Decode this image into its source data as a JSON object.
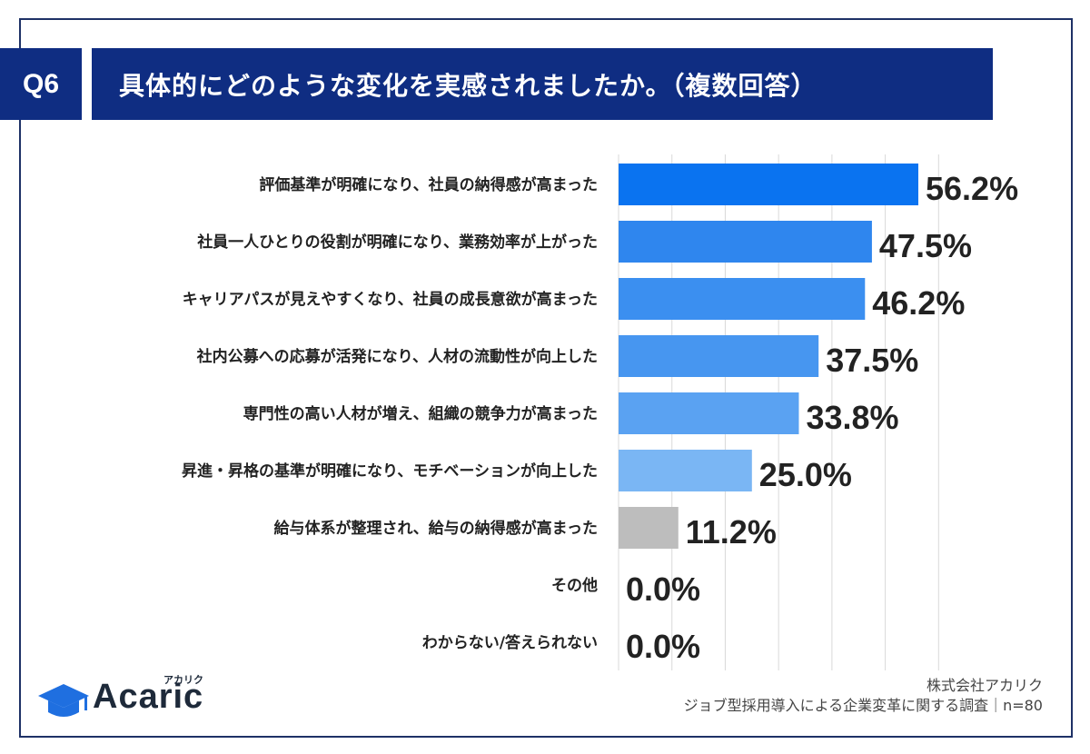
{
  "header": {
    "badge": "Q6",
    "title": "具体的にどのような変化を実感されましたか。（複数回答）"
  },
  "chart_data": {
    "type": "bar",
    "orientation": "horizontal",
    "categories": [
      "評価基準が明確になり、社員の納得感が高まった",
      "社員一人ひとりの役割が明確になり、業務効率が上がった",
      "キャリアパスが見えやすくなり、社員の成長意欲が高まった",
      "社内公募への応募が活発になり、人材の流動性が向上した",
      "専門性の高い人材が増え、組織の競争力が高まった",
      "昇進・昇格の基準が明確になり、モチベーションが向上した",
      "給与体系が整理され、給与の納得感が高まった",
      "その他",
      "わからない/答えられない"
    ],
    "values": [
      56.2,
      47.5,
      46.2,
      37.5,
      33.8,
      25.0,
      11.2,
      0.0,
      0.0
    ],
    "value_labels": [
      "56.2%",
      "47.5%",
      "46.2%",
      "37.5%",
      "33.8%",
      "25.0%",
      "11.2%",
      "0.0%",
      "0.0%"
    ],
    "colors": [
      "#0a73f0",
      "#2f86ee",
      "#3b8ff0",
      "#4796f0",
      "#5aa2f2",
      "#7ab6f4",
      "#bdbdbd",
      "#bdbdbd",
      "#bdbdbd"
    ],
    "xlim": [
      0,
      60
    ],
    "grid": true,
    "gridline_color": "#d9d9d9"
  },
  "logo": {
    "name": "Acaric",
    "kana": "アカリク"
  },
  "footer": {
    "company": "株式会社アカリク",
    "survey": "ジョブ型採用導入による企業変革に関する調査｜n=80"
  }
}
